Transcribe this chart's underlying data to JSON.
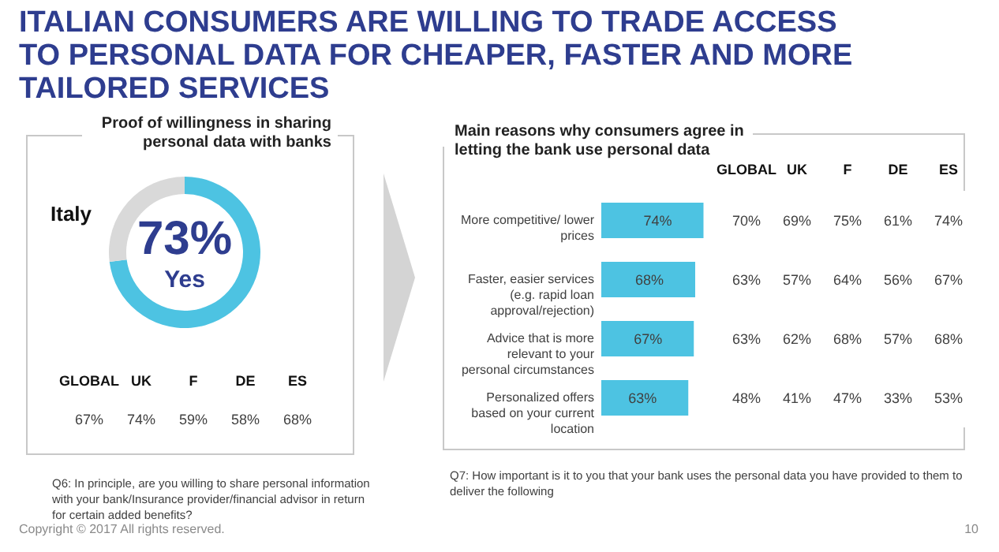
{
  "chart_data": [
    {
      "type": "other",
      "title": "ITALIAN CONSUMERS ARE WILLING TO TRADE ACCESS TO PERSONAL DATA FOR CHEAPER, FASTER AND MORE TAILORED SERVICES",
      "annotations": [
        "Copyright © 2017  All rights reserved.",
        "10"
      ]
    },
    {
      "type": "donut",
      "title": "Proof of willingness in sharing personal data with banks",
      "categories": [
        "Yes",
        null
      ],
      "values": [
        73,
        27
      ],
      "colors": [
        "#4dc3e2",
        "#d9d9d9"
      ],
      "value_labels": [
        "73%",
        null
      ],
      "annotations": [
        "Italy"
      ]
    },
    {
      "type": "other",
      "categories": [
        "GLOBAL",
        "UK",
        "F",
        "DE",
        "ES"
      ],
      "cell_labels": [
        [
          "67%",
          "74%",
          "59%",
          "58%",
          "68%"
        ]
      ],
      "annotations": [
        "Q6: In principle, are you willing to share personal information with your bank/Insurance provider/financial advisor in return for certain added benefits?"
      ]
    },
    {
      "type": "bar",
      "orientation": "horizontal",
      "title": "Main reasons why consumers agree in letting the bank use personal data",
      "categories": [
        "More competitive/ lower prices",
        "Faster, easier services (e.g. rapid loan approval/rejection)",
        "Advice that is more relevant to your personal circumstances",
        "Personalized offers based on your current location"
      ],
      "values": [
        74,
        68,
        67,
        63
      ],
      "color": "#4dc3e2",
      "value_labels": [
        "74%",
        "68%",
        "67%",
        "63%"
      ],
      "annotations": [
        "Q7: How important is it to you that your bank uses the personal data you have provided to them to deliver the following"
      ]
    },
    {
      "type": "other",
      "categories": [
        "GLOBAL",
        "UK",
        "F",
        "DE",
        "ES"
      ],
      "cell_labels": [
        [
          "70%",
          "69%",
          "75%",
          "61%",
          "74%"
        ],
        [
          "63%",
          "57%",
          "64%",
          "56%",
          "67%"
        ],
        [
          "63%",
          "62%",
          "68%",
          "57%",
          "68%"
        ],
        [
          "48%",
          "41%",
          "47%",
          "33%",
          "53%"
        ]
      ]
    }
  ]
}
